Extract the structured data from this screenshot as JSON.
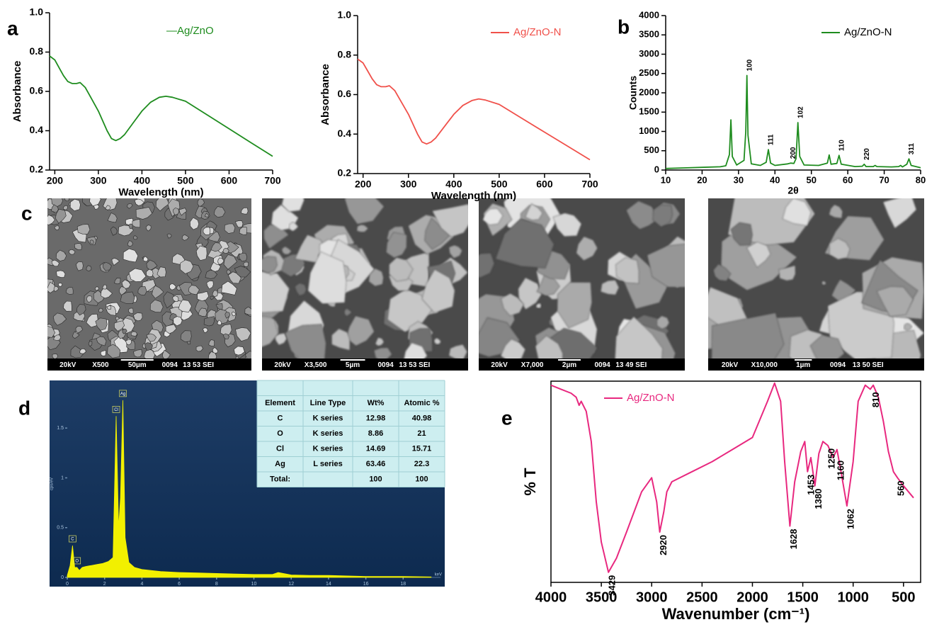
{
  "panel_labels": [
    "a",
    "b",
    "c",
    "d",
    "e"
  ],
  "chart_data": [
    {
      "type": "line",
      "xlabel": "Wavelength (nm)",
      "ylabel": "Absorbance",
      "x": [
        188,
        200,
        210,
        220,
        230,
        240,
        250,
        258,
        270,
        280,
        300,
        320,
        330,
        340,
        350,
        360,
        380,
        400,
        420,
        440,
        455,
        470,
        500,
        550,
        600,
        650,
        700
      ],
      "series": [
        {
          "name": "—Ag/ZnO",
          "color": "#1e8c1e",
          "values": [
            0.78,
            0.76,
            0.72,
            0.68,
            0.65,
            0.64,
            0.64,
            0.645,
            0.62,
            0.58,
            0.5,
            0.4,
            0.36,
            0.35,
            0.36,
            0.38,
            0.44,
            0.5,
            0.545,
            0.57,
            0.575,
            0.57,
            0.55,
            0.48,
            0.41,
            0.34,
            0.27
          ]
        }
      ],
      "xlim": [
        188,
        700
      ],
      "xticks": [
        200,
        300,
        400,
        500,
        600,
        700
      ],
      "ylim": [
        0.2,
        1
      ],
      "yticks": [
        0.2,
        0.4,
        0.6,
        0.8,
        {
          "value": 1,
          "label": "1.0"
        }
      ],
      "legend": "upper right"
    },
    {
      "type": "line",
      "xlabel": "Wavelength (nm)",
      "ylabel": "Absorbance",
      "x": [
        188,
        200,
        210,
        220,
        230,
        240,
        250,
        258,
        270,
        280,
        300,
        320,
        330,
        340,
        350,
        360,
        380,
        400,
        420,
        440,
        455,
        470,
        500,
        550,
        600,
        650,
        700
      ],
      "series": [
        {
          "name": "Ag/ZnO-N",
          "color": "#f0504a",
          "values": [
            0.78,
            0.76,
            0.72,
            0.68,
            0.65,
            0.64,
            0.64,
            0.645,
            0.62,
            0.58,
            0.5,
            0.4,
            0.36,
            0.35,
            0.36,
            0.38,
            0.44,
            0.5,
            0.545,
            0.57,
            0.578,
            0.572,
            0.55,
            0.48,
            0.41,
            0.34,
            0.27
          ]
        }
      ],
      "xlim": [
        188,
        700
      ],
      "xticks": [
        200,
        300,
        400,
        500,
        600,
        700
      ],
      "ylim": [
        0.2,
        1
      ],
      "yticks": [
        0.2,
        0.4,
        0.6,
        0.8,
        {
          "value": 1,
          "label": "1.0"
        }
      ],
      "legend": "upper right"
    },
    {
      "type": "line",
      "xlabel": "2θ",
      "ylabel": "Counts",
      "x": [
        10,
        15,
        20,
        25,
        26.5,
        27.5,
        27.9,
        28.3,
        29.5,
        31.5,
        32.0,
        32.3,
        32.6,
        33.5,
        36,
        37.6,
        38.2,
        38.8,
        40,
        43.5,
        44.3,
        45.2,
        45.8,
        46.3,
        46.8,
        48,
        52,
        54.4,
        54.9,
        55.4,
        57.0,
        57.6,
        58.2,
        62,
        64.0,
        64.5,
        65.0,
        67.0,
        67.5,
        68.0,
        72,
        74.0,
        74.5,
        75.0,
        76.2,
        76.8,
        77.4,
        80
      ],
      "series": [
        {
          "name": "Ag/ZnO-N",
          "color": "#1e8c1e",
          "values": [
            40,
            55,
            70,
            85,
            110,
            400,
            1300,
            350,
            130,
            250,
            1000,
            2450,
            900,
            160,
            120,
            200,
            530,
            180,
            120,
            160,
            180,
            170,
            300,
            1230,
            350,
            130,
            120,
            180,
            390,
            150,
            170,
            380,
            150,
            90,
            100,
            150,
            90,
            90,
            120,
            90,
            80,
            90,
            120,
            80,
            150,
            290,
            120,
            60
          ]
        }
      ],
      "xlim": [
        10,
        80
      ],
      "xticks": [
        10,
        20,
        30,
        40,
        50,
        60,
        70,
        80
      ],
      "ylim": [
        0,
        4000
      ],
      "yticks": [
        0,
        500,
        1000,
        1500,
        2000,
        2500,
        3000,
        3500,
        4000
      ],
      "legend": "upper right",
      "annotations": [
        {
          "text": "100",
          "x": 32.3,
          "y": 2450
        },
        {
          "text": "111",
          "x": 38.2,
          "y": 530
        },
        {
          "text": "200",
          "x": 44.3,
          "y": 180
        },
        {
          "text": "102",
          "x": 46.3,
          "y": 1230
        },
        {
          "text": "110",
          "x": 57.6,
          "y": 380
        },
        {
          "text": "220",
          "x": 64.5,
          "y": 150
        },
        {
          "text": "311",
          "x": 76.8,
          "y": 290
        }
      ]
    },
    {
      "type": "area",
      "xlabel": "keV",
      "ylabel": "cps/eV",
      "x": [
        0,
        0.15,
        0.28,
        0.4,
        0.52,
        0.65,
        0.8,
        1.0,
        1.3,
        1.6,
        1.9,
        2.2,
        2.45,
        2.62,
        2.75,
        2.85,
        2.98,
        3.1,
        3.3,
        3.6,
        4,
        5,
        6,
        7,
        8,
        9,
        10,
        11,
        11.3,
        12,
        13,
        14,
        15,
        16,
        17,
        18,
        19.5
      ],
      "series": [
        {
          "color": "#f2f000",
          "values": [
            0.02,
            0.12,
            0.32,
            0.1,
            0.1,
            0.07,
            0.1,
            0.11,
            0.12,
            0.13,
            0.14,
            0.16,
            0.2,
            1.62,
            0.5,
            0.8,
            1.78,
            0.4,
            0.15,
            0.1,
            0.08,
            0.06,
            0.05,
            0.045,
            0.04,
            0.035,
            0.03,
            0.03,
            0.05,
            0.025,
            0.02,
            0.02,
            0.015,
            0.01,
            0.01,
            0.01,
            0.005
          ]
        }
      ],
      "xlim": [
        0,
        20
      ],
      "xticks": [
        0,
        2,
        4,
        6,
        8,
        10,
        12,
        14,
        16,
        18
      ],
      "ylim": [
        0,
        1.9
      ],
      "yticks": [
        0,
        0.5,
        1,
        1.5
      ],
      "annotations": [
        {
          "text": "C",
          "x": 0.28,
          "y": 0.32
        },
        {
          "text": "O",
          "x": 0.52,
          "y": 0.1
        },
        {
          "text": "Cl",
          "x": 2.62,
          "y": 1.62
        },
        {
          "text": "Ag",
          "x": 2.98,
          "y": 1.78
        }
      ]
    },
    {
      "type": "line",
      "xlabel": "Wavenumber (cm⁻¹)",
      "ylabel": "% T",
      "x": [
        4000,
        3900,
        3800,
        3750,
        3720,
        3700,
        3650,
        3600,
        3550,
        3500,
        3429,
        3350,
        3250,
        3100,
        3000,
        2950,
        2920,
        2880,
        2850,
        2800,
        2600,
        2400,
        2200,
        2000,
        1850,
        1780,
        1720,
        1680,
        1628,
        1580,
        1520,
        1480,
        1453,
        1420,
        1380,
        1340,
        1300,
        1250,
        1200,
        1160,
        1120,
        1062,
        1000,
        950,
        880,
        830,
        800,
        750,
        700,
        650,
        600,
        560,
        500,
        450,
        400
      ],
      "series": [
        {
          "name": "Ag/ZnO-N",
          "color": "#e8287f",
          "values": [
            98,
            96,
            94,
            92,
            88,
            90,
            85,
            70,
            40,
            20,
            5,
            12,
            25,
            45,
            52,
            40,
            25,
            35,
            45,
            50,
            55,
            60,
            66,
            72,
            90,
            99,
            90,
            60,
            28,
            50,
            65,
            70,
            55,
            62,
            48,
            64,
            70,
            68,
            62,
            66,
            55,
            38,
            60,
            90,
            98,
            96,
            98,
            92,
            80,
            65,
            55,
            52,
            48,
            45,
            42
          ]
        }
      ],
      "xlim": [
        4000,
        330
      ],
      "xticks": [
        4000,
        3500,
        3000,
        2500,
        2000,
        1500,
        1000,
        500
      ],
      "ylim": [
        0,
        100
      ],
      "legend": "upper left",
      "annotations": [
        {
          "text": "3429",
          "x": 3429,
          "y": 5
        },
        {
          "text": "2920",
          "x": 2920,
          "y": 25
        },
        {
          "text": "1628",
          "x": 1628,
          "y": 28
        },
        {
          "text": "1453",
          "x": 1453,
          "y": 55
        },
        {
          "text": "1380",
          "x": 1380,
          "y": 48
        },
        {
          "text": "1250",
          "x": 1250,
          "y": 68
        },
        {
          "text": "1160",
          "x": 1160,
          "y": 62
        },
        {
          "text": "1062",
          "x": 1062,
          "y": 38
        },
        {
          "text": "810",
          "x": 810,
          "y": 96
        },
        {
          "text": "560",
          "x": 560,
          "y": 52
        }
      ]
    }
  ],
  "eds_table": {
    "columns": [
      "Element",
      "Line Type",
      "Wt%",
      "Atomic %"
    ],
    "rows": [
      [
        "C",
        "K series",
        12.98,
        40.98
      ],
      [
        "O",
        "K series",
        8.86,
        21
      ],
      [
        "Cl",
        "K series",
        14.69,
        15.71
      ],
      [
        "Ag",
        "L series",
        63.46,
        22.3
      ],
      [
        "Total:",
        null,
        100,
        100
      ]
    ]
  },
  "sem_images": [
    {
      "captions": [
        "20kV",
        "X500",
        "50µm",
        "0094",
        "13 53 SEI"
      ]
    },
    {
      "captions": [
        "20kV",
        "X3,500",
        "5µm",
        "0094",
        "13 53 SEI"
      ]
    },
    {
      "captions": [
        "20kV",
        "X7,000",
        "2µm",
        "0094",
        "13 49 SEI"
      ]
    },
    {
      "captions": [
        "20kV",
        "X10,000",
        "1µm",
        "0094",
        "13 50 SEI"
      ]
    }
  ]
}
